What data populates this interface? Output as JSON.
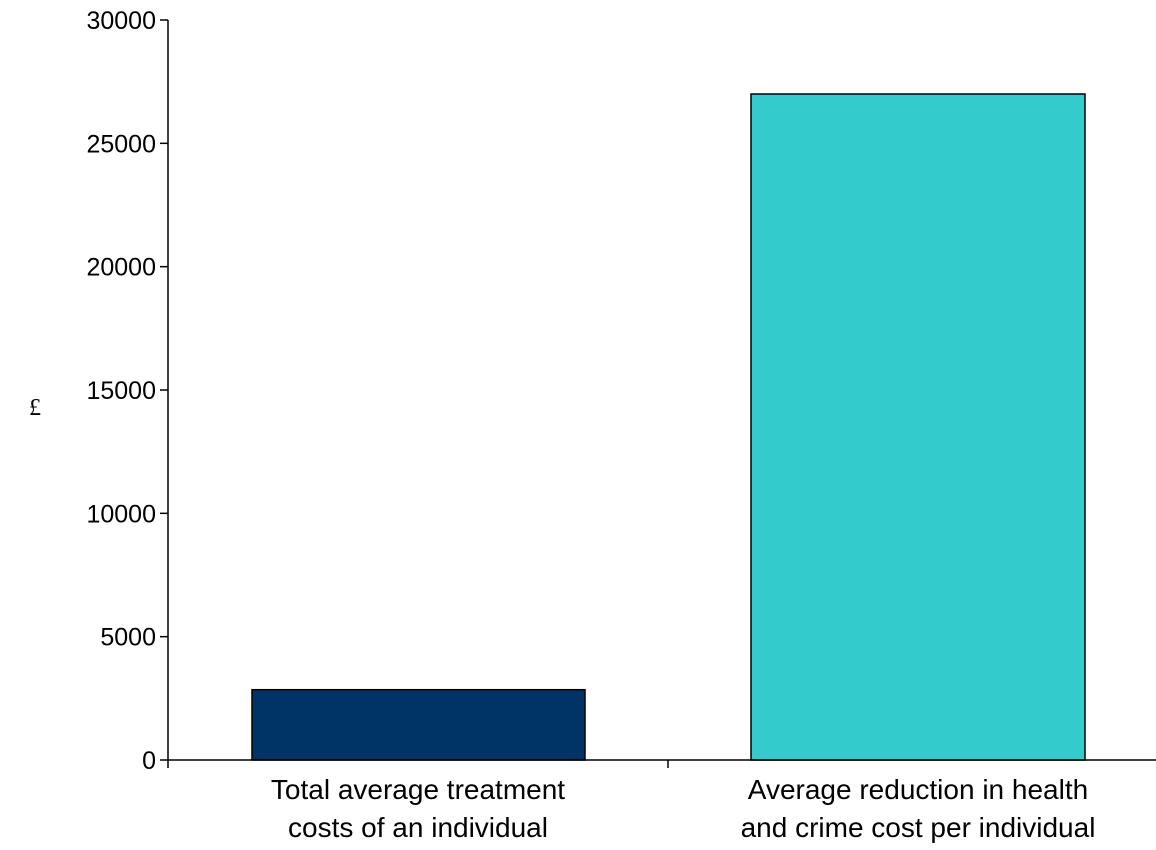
{
  "chart_data": {
    "type": "bar",
    "categories": [
      [
        "Total average treatment",
        "costs of an individual"
      ],
      [
        "Average reduction in health",
        "and crime cost per individual"
      ]
    ],
    "values": [
      2850,
      27000
    ],
    "colors": [
      "#003366",
      "#33CCCC"
    ],
    "title": "",
    "xlabel": "",
    "ylabel": "£",
    "ylim": [
      0,
      30000
    ],
    "yticks": [
      "0",
      "5000",
      "10000",
      "15000",
      "20000",
      "25000",
      "30000"
    ],
    "grid": false,
    "legend": "none"
  }
}
